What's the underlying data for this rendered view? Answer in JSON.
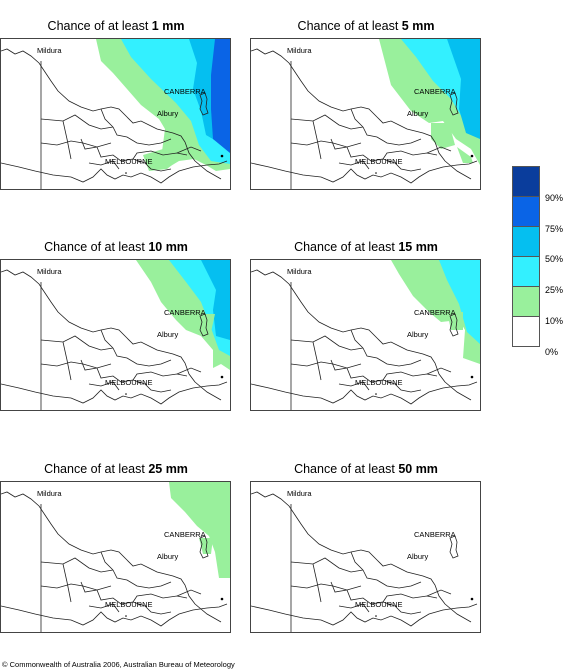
{
  "panels": [
    {
      "prefix": "Chance of at least ",
      "amount": "1 mm"
    },
    {
      "prefix": "Chance of at least ",
      "amount": "5 mm"
    },
    {
      "prefix": "Chance of at least ",
      "amount": "10 mm"
    },
    {
      "prefix": "Chance of at least ",
      "amount": "15 mm"
    },
    {
      "prefix": "Chance of at least ",
      "amount": "25 mm"
    },
    {
      "prefix": "Chance of at least ",
      "amount": "50 mm"
    }
  ],
  "places": {
    "mildura": "Mildura",
    "canberra": "CANBERRA",
    "albury": "Albury",
    "melbourne": "MELBOURNE"
  },
  "legend": {
    "ticks": [
      "90%",
      "75%",
      "50%",
      "25%",
      "10%",
      "0%"
    ],
    "colors": [
      "#0a3d9c",
      "#0a64e6",
      "#05bff0",
      "#33f0ff",
      "#99f09c",
      "#ffffff"
    ],
    "bands": [
      "90–100%",
      "75–90%",
      "50–75%",
      "25–50%",
      "10–25%",
      "0–10%"
    ]
  },
  "footer": "© Commonwealth of Australia 2006, Australian Bureau of Meteorology"
}
